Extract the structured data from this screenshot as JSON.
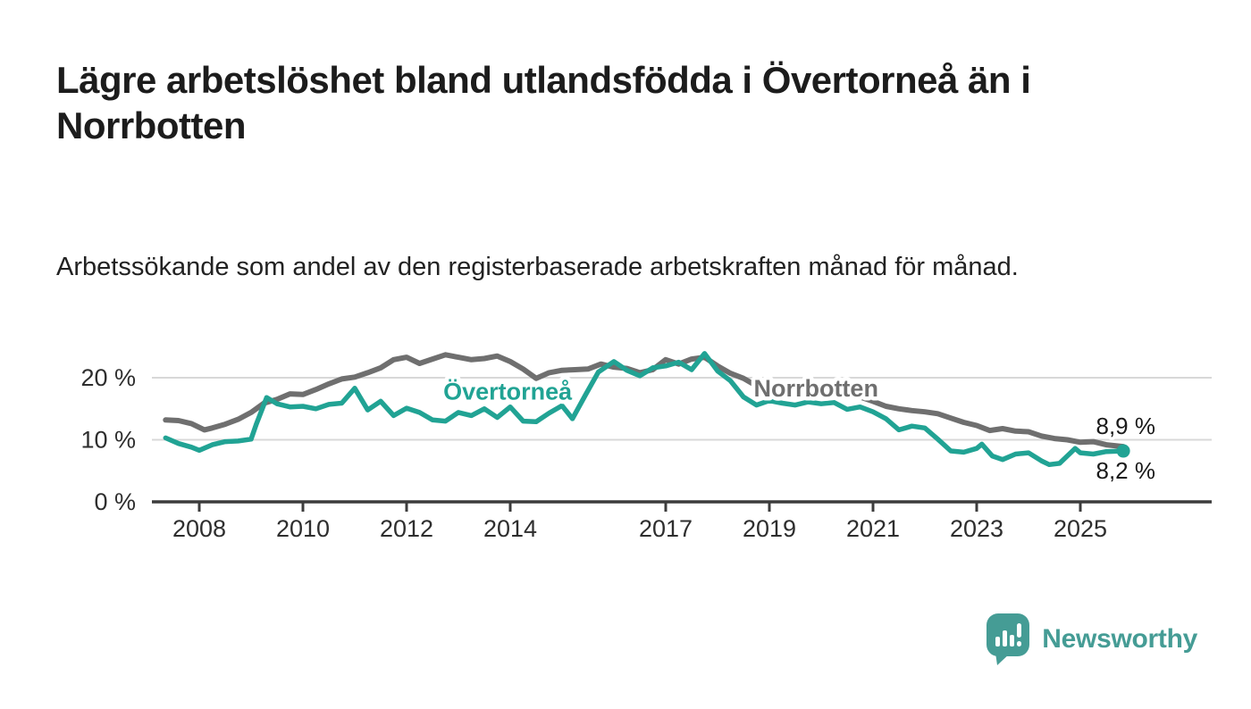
{
  "header": {
    "title": "Lägre arbetslöshet bland utlandsfödda i Övertorneå än i Norrbotten",
    "subtitle": "Arbetssökande som andel av den registerbaserade arbetskraften månad för månad."
  },
  "branding": {
    "logo_text": "Newsworthy",
    "logo_icon": "bar-chart-speech-bubble-icon",
    "logo_color": "#459c95"
  },
  "colors": {
    "series_overtornea": "#21a394",
    "series_norrbotten": "#6f6f6f",
    "gridline": "#d8d8d8",
    "axis": "#3c3c3c",
    "tick_text": "#2e2e2e",
    "annotation_text": "#1a1a1a",
    "halo": "#ffffff"
  },
  "chart_data": {
    "type": "line",
    "x_unit": "decimal_year",
    "grid": "horizontal",
    "xlim": [
      2007.1,
      2026.6
    ],
    "ylim": [
      0,
      24.5
    ],
    "y_ticks": [
      {
        "value": 0,
        "label": "0 %"
      },
      {
        "value": 10,
        "label": "10 %"
      },
      {
        "value": 20,
        "label": "20 %"
      }
    ],
    "x_ticks": [
      {
        "value": 2008,
        "label": "2008"
      },
      {
        "value": 2010,
        "label": "2010"
      },
      {
        "value": 2012,
        "label": "2012"
      },
      {
        "value": 2014,
        "label": "2014"
      },
      {
        "value": 2017,
        "label": "2017"
      },
      {
        "value": 2019,
        "label": "2019"
      },
      {
        "value": 2021,
        "label": "2021"
      },
      {
        "value": 2023,
        "label": "2023"
      },
      {
        "value": 2025,
        "label": "2025"
      }
    ],
    "series": [
      {
        "name": "Norrbotten",
        "slug": "norrbotten",
        "color": "#6f6f6f",
        "stroke_width": 6,
        "end_dot": false,
        "end_label": "8,9 %",
        "inline_label": {
          "text": "Norrbotten",
          "x": 2019.9,
          "y": 17.0
        },
        "x": [
          2007.35,
          2007.6,
          2007.85,
          2008.1,
          2008.25,
          2008.5,
          2008.75,
          2009.0,
          2009.25,
          2009.5,
          2009.75,
          2010.0,
          2010.25,
          2010.5,
          2010.75,
          2011.0,
          2011.25,
          2011.5,
          2011.75,
          2012.0,
          2012.25,
          2012.5,
          2012.75,
          2013.0,
          2013.25,
          2013.5,
          2013.75,
          2014.0,
          2014.25,
          2014.5,
          2014.75,
          2015.0,
          2015.25,
          2015.5,
          2015.75,
          2016.0,
          2016.25,
          2016.5,
          2016.75,
          2017.0,
          2017.25,
          2017.5,
          2017.75,
          2018.0,
          2018.25,
          2018.5,
          2018.75,
          2019.0,
          2019.25,
          2019.5,
          2019.75,
          2020.0,
          2020.25,
          2020.5,
          2020.75,
          2021.0,
          2021.25,
          2021.5,
          2021.75,
          2022.0,
          2022.25,
          2022.5,
          2022.75,
          2023.0,
          2023.25,
          2023.5,
          2023.75,
          2024.0,
          2024.25,
          2024.5,
          2024.75,
          2025.0,
          2025.25,
          2025.5,
          2025.83
        ],
        "values": [
          13.2,
          13.1,
          12.6,
          11.6,
          11.9,
          12.5,
          13.3,
          14.4,
          15.9,
          16.5,
          17.4,
          17.3,
          18.1,
          19.0,
          19.8,
          20.1,
          20.8,
          21.6,
          22.9,
          23.3,
          22.3,
          23.0,
          23.7,
          23.3,
          22.9,
          23.1,
          23.5,
          22.6,
          21.4,
          19.9,
          20.8,
          21.2,
          21.3,
          21.4,
          22.2,
          21.7,
          21.5,
          20.8,
          21.3,
          22.9,
          22.2,
          23.0,
          23.3,
          21.9,
          20.7,
          19.9,
          18.7,
          17.9,
          17.5,
          17.3,
          17.0,
          17.2,
          17.7,
          17.4,
          16.9,
          16.2,
          15.4,
          15.0,
          14.7,
          14.5,
          14.2,
          13.5,
          12.8,
          12.3,
          11.5,
          11.8,
          11.4,
          11.3,
          10.6,
          10.2,
          10.0,
          9.6,
          9.7,
          9.2,
          8.9
        ]
      },
      {
        "name": "Övertorneå",
        "slug": "overtornea",
        "color": "#21a394",
        "stroke_width": 5.5,
        "end_dot": true,
        "end_label": "8,2 %",
        "inline_label": {
          "text": "Övertorneå",
          "x": 2013.95,
          "y": 16.5
        },
        "x": [
          2007.35,
          2007.6,
          2007.85,
          2008.0,
          2008.25,
          2008.5,
          2008.75,
          2009.0,
          2009.1,
          2009.3,
          2009.5,
          2009.75,
          2010.0,
          2010.25,
          2010.5,
          2010.75,
          2011.0,
          2011.25,
          2011.5,
          2011.75,
          2012.0,
          2012.25,
          2012.5,
          2012.75,
          2013.0,
          2013.25,
          2013.5,
          2013.75,
          2014.0,
          2014.25,
          2014.5,
          2014.75,
          2015.0,
          2015.2,
          2015.45,
          2015.7,
          2016.0,
          2016.25,
          2016.5,
          2016.75,
          2017.0,
          2017.25,
          2017.5,
          2017.75,
          2018.0,
          2018.25,
          2018.5,
          2018.75,
          2019.0,
          2019.25,
          2019.5,
          2019.75,
          2020.0,
          2020.25,
          2020.5,
          2020.75,
          2021.0,
          2021.25,
          2021.5,
          2021.75,
          2022.0,
          2022.25,
          2022.5,
          2022.75,
          2023.0,
          2023.1,
          2023.3,
          2023.5,
          2023.75,
          2024.0,
          2024.25,
          2024.4,
          2024.6,
          2024.9,
          2025.0,
          2025.25,
          2025.5,
          2025.83
        ],
        "values": [
          10.3,
          9.4,
          8.8,
          8.3,
          9.2,
          9.7,
          9.8,
          10.1,
          12.5,
          16.8,
          15.8,
          15.3,
          15.4,
          15.0,
          15.7,
          15.9,
          18.3,
          14.8,
          16.2,
          13.9,
          15.1,
          14.4,
          13.2,
          13.0,
          14.4,
          13.9,
          15.0,
          13.6,
          15.3,
          13.0,
          12.9,
          14.3,
          15.5,
          13.4,
          17.2,
          20.9,
          22.6,
          21.2,
          20.3,
          21.6,
          21.9,
          22.5,
          21.3,
          23.9,
          21.1,
          19.5,
          16.9,
          15.6,
          16.3,
          15.9,
          15.6,
          16.1,
          15.8,
          16.0,
          14.9,
          15.3,
          14.5,
          13.4,
          11.6,
          12.2,
          11.9,
          10.1,
          8.2,
          8.0,
          8.6,
          9.3,
          7.4,
          6.8,
          7.7,
          7.9,
          6.6,
          6.0,
          6.2,
          8.6,
          7.9,
          7.7,
          8.1,
          8.2
        ]
      }
    ]
  }
}
